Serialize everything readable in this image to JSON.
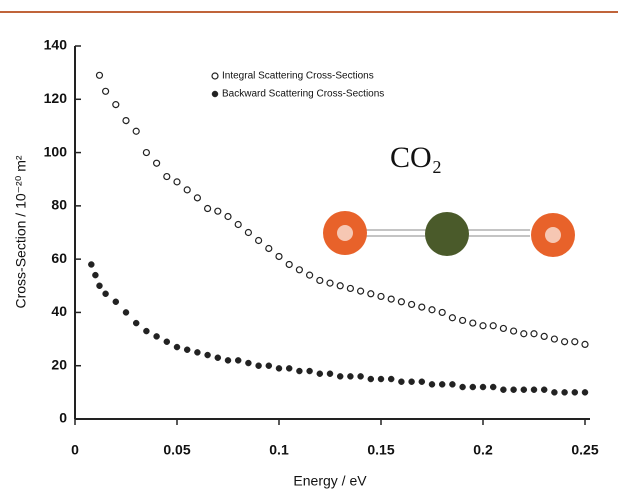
{
  "chart_data": {
    "type": "scatter",
    "xlabel": "Energy / eV",
    "ylabel": "Cross-Section / 10⁻²⁰ m²",
    "annotation": "CO₂",
    "xlim": [
      0,
      0.25
    ],
    "ylim": [
      0,
      140
    ],
    "xticks": [
      0,
      0.05,
      0.1,
      0.15,
      0.2,
      0.25
    ],
    "yticks": [
      0,
      20,
      40,
      60,
      80,
      100,
      120,
      140
    ],
    "legend": "top-left",
    "series": [
      {
        "name": "Integral Scattering Cross-Sections",
        "color": "#222222",
        "marker": "open",
        "x": [
          0.012,
          0.015,
          0.02,
          0.025,
          0.03,
          0.035,
          0.04,
          0.045,
          0.05,
          0.055,
          0.06,
          0.065,
          0.07,
          0.075,
          0.08,
          0.085,
          0.09,
          0.095,
          0.1,
          0.105,
          0.11,
          0.115,
          0.12,
          0.125,
          0.13,
          0.135,
          0.14,
          0.145,
          0.15,
          0.155,
          0.16,
          0.165,
          0.17,
          0.175,
          0.18,
          0.185,
          0.19,
          0.195,
          0.2,
          0.205,
          0.21,
          0.215,
          0.22,
          0.225,
          0.23,
          0.235,
          0.24,
          0.245,
          0.25
        ],
        "values": [
          129,
          123,
          118,
          112,
          108,
          100,
          96,
          91,
          89,
          86,
          83,
          79,
          78,
          76,
          73,
          70,
          67,
          64,
          61,
          58,
          56,
          54,
          52,
          51,
          50,
          49,
          48,
          47,
          46,
          45,
          44,
          43,
          42,
          41,
          40,
          38,
          37,
          36,
          35,
          35,
          34,
          33,
          32,
          32,
          31,
          30,
          29,
          29,
          28
        ]
      },
      {
        "name": "Backward Scattering Cross-Sections",
        "color": "#222222",
        "marker": "filled",
        "x": [
          0.008,
          0.01,
          0.012,
          0.015,
          0.02,
          0.025,
          0.03,
          0.035,
          0.04,
          0.045,
          0.05,
          0.055,
          0.06,
          0.065,
          0.07,
          0.075,
          0.08,
          0.085,
          0.09,
          0.095,
          0.1,
          0.105,
          0.11,
          0.115,
          0.12,
          0.125,
          0.13,
          0.135,
          0.14,
          0.145,
          0.15,
          0.155,
          0.16,
          0.165,
          0.17,
          0.175,
          0.18,
          0.185,
          0.19,
          0.195,
          0.2,
          0.205,
          0.21,
          0.215,
          0.22,
          0.225,
          0.23,
          0.235,
          0.24,
          0.245,
          0.25
        ],
        "values": [
          58,
          54,
          50,
          47,
          44,
          40,
          36,
          33,
          31,
          29,
          27,
          26,
          25,
          24,
          23,
          22,
          22,
          21,
          20,
          20,
          19,
          19,
          18,
          18,
          17,
          17,
          16,
          16,
          16,
          15,
          15,
          15,
          14,
          14,
          14,
          13,
          13,
          13,
          12,
          12,
          12,
          12,
          11,
          11,
          11,
          11,
          11,
          10,
          10,
          10,
          10
        ]
      }
    ]
  }
}
